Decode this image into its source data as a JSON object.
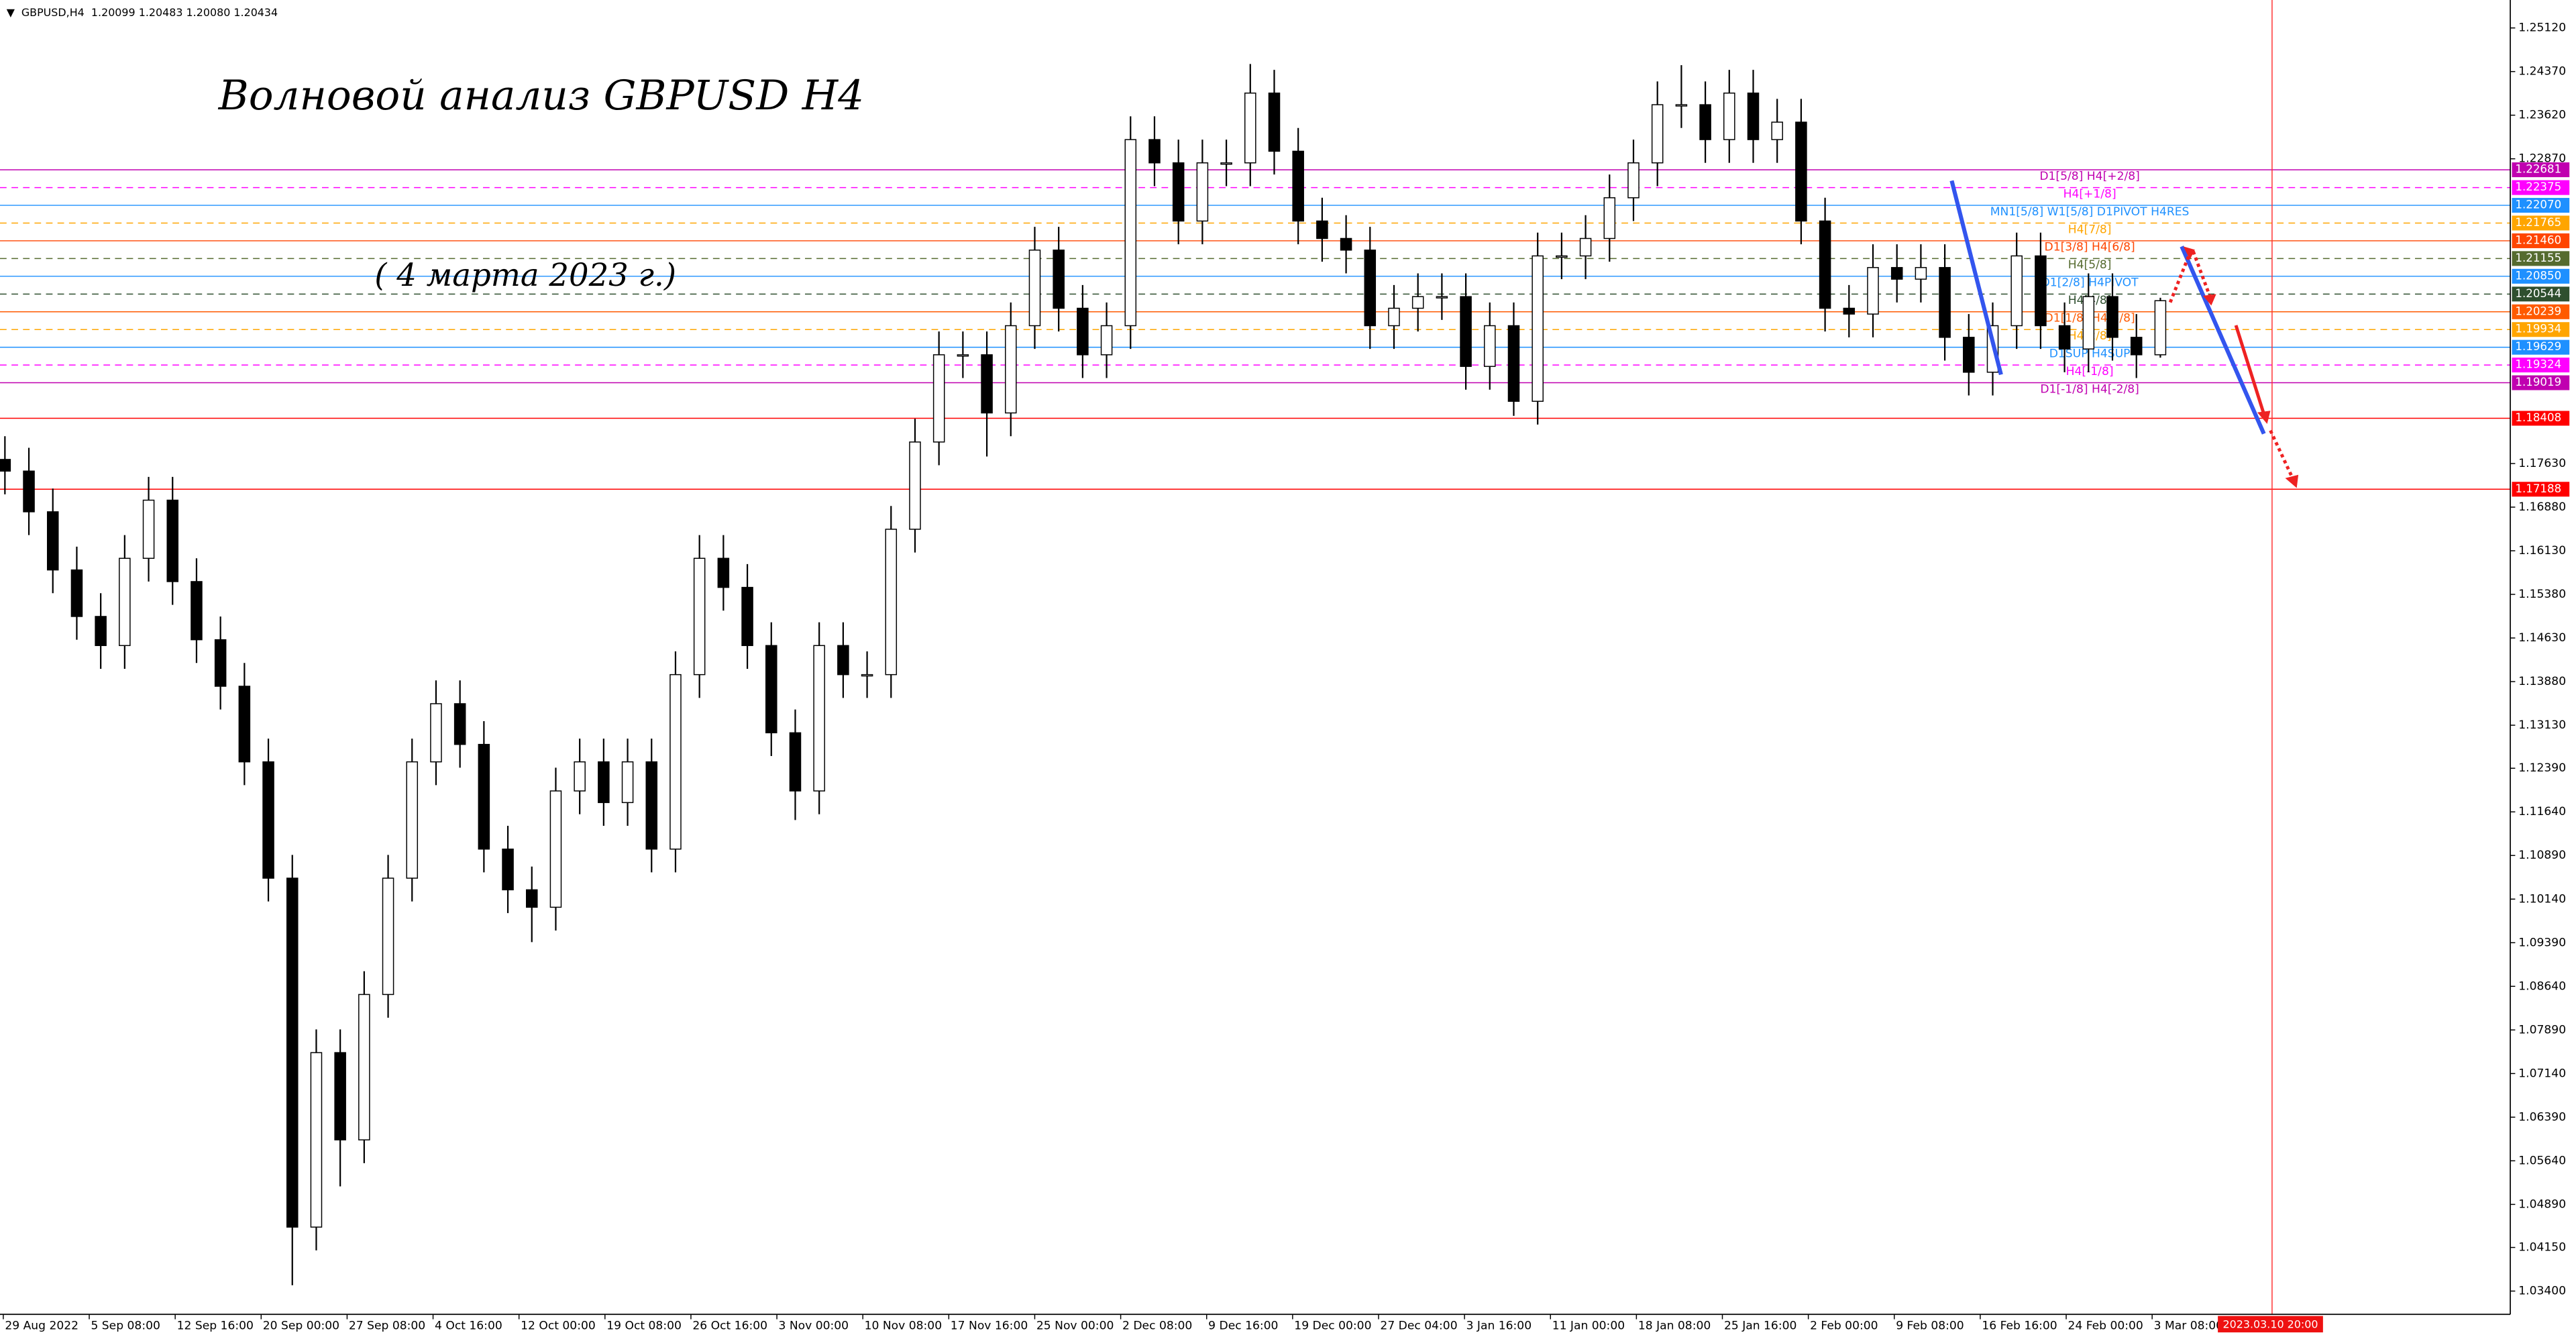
{
  "chart_data": {
    "type": "candlestick",
    "title": "Волновой анализ GBPUSD H4",
    "subtitle": "( 4 марта 2023 г.)",
    "info": "GBPUSD,H4  1.20099 1.20483 1.20080 1.20434",
    "cursor_label": "2023.03.10 20:00",
    "ylim": [
      1.03,
      1.256
    ],
    "yticks": [
      {
        "value": 1.2512,
        "label": "1.25120"
      },
      {
        "value": 1.2437,
        "label": "1.24370"
      },
      {
        "value": 1.2362,
        "label": "1.23620"
      },
      {
        "value": 1.2287,
        "label": "1.22870"
      },
      {
        "value": 1.1763,
        "label": "1.17630"
      },
      {
        "value": 1.1688,
        "label": "1.16880"
      },
      {
        "value": 1.1613,
        "label": "1.16130"
      },
      {
        "value": 1.1538,
        "label": "1.15380"
      },
      {
        "value": 1.1463,
        "label": "1.14630"
      },
      {
        "value": 1.1388,
        "label": "1.13880"
      },
      {
        "value": 1.1313,
        "label": "1.13130"
      },
      {
        "value": 1.1239,
        "label": "1.12390"
      },
      {
        "value": 1.1164,
        "label": "1.11640"
      },
      {
        "value": 1.1089,
        "label": "1.10890"
      },
      {
        "value": 1.1014,
        "label": "1.10140"
      },
      {
        "value": 1.0939,
        "label": "1.09390"
      },
      {
        "value": 1.0864,
        "label": "1.08640"
      },
      {
        "value": 1.0789,
        "label": "1.07890"
      },
      {
        "value": 1.0714,
        "label": "1.07140"
      },
      {
        "value": 1.0639,
        "label": "1.06390"
      },
      {
        "value": 1.0564,
        "label": "1.05640"
      },
      {
        "value": 1.0489,
        "label": "1.04890"
      },
      {
        "value": 1.0415,
        "label": "1.04150"
      },
      {
        "value": 1.034,
        "label": "1.03400"
      }
    ],
    "x_labels": [
      "29 Aug 2022",
      "5 Sep 08:00",
      "12 Sep 16:00",
      "20 Sep 00:00",
      "27 Sep 08:00",
      "4 Oct 16:00",
      "12 Oct 00:00",
      "19 Oct 08:00",
      "26 Oct 16:00",
      "3 Nov 00:00",
      "10 Nov 08:00",
      "17 Nov 16:00",
      "25 Nov 00:00",
      "2 Dec 08:00",
      "9 Dec 16:00",
      "19 Dec 00:00",
      "27 Dec 04:00",
      "3 Jan 16:00",
      "11 Jan 00:00",
      "18 Jan 08:00",
      "25 Jan 16:00",
      "2 Feb 00:00",
      "9 Feb 08:00",
      "16 Feb 16:00",
      "24 Feb 00:00",
      "3 Mar 08:00"
    ],
    "candles": {
      "open": [
        1.177,
        1.175,
        1.168,
        1.158,
        1.15,
        1.145,
        1.16,
        1.17,
        1.156,
        1.146,
        1.138,
        1.125,
        1.105,
        1.045,
        1.075,
        1.06,
        1.085,
        1.105,
        1.125,
        1.135,
        1.128,
        1.11,
        1.103,
        1.1,
        1.12,
        1.125,
        1.118,
        1.125,
        1.11,
        1.14,
        1.16,
        1.155,
        1.145,
        1.13,
        1.12,
        1.145,
        1.14,
        1.14,
        1.165,
        1.18,
        1.195,
        1.195,
        1.185,
        1.2,
        1.213,
        1.203,
        1.195,
        1.2,
        1.232,
        1.228,
        1.218,
        1.228,
        1.228,
        1.24,
        1.23,
        1.218,
        1.215,
        1.213,
        1.2,
        1.203,
        1.205,
        1.205,
        1.193,
        1.2,
        1.187,
        1.212,
        1.212,
        1.215,
        1.222,
        1.228,
        1.238,
        1.238,
        1.232,
        1.24,
        1.232,
        1.235,
        1.218,
        1.203,
        1.202,
        1.21,
        1.208,
        1.21,
        1.198,
        1.192,
        1.2,
        1.212,
        1.2,
        1.196,
        1.205,
        1.198,
        1.195
      ],
      "high": [
        1.181,
        1.179,
        1.172,
        1.162,
        1.154,
        1.164,
        1.174,
        1.174,
        1.16,
        1.15,
        1.142,
        1.129,
        1.109,
        1.079,
        1.079,
        1.089,
        1.109,
        1.129,
        1.139,
        1.139,
        1.132,
        1.114,
        1.107,
        1.124,
        1.129,
        1.129,
        1.129,
        1.129,
        1.144,
        1.164,
        1.164,
        1.159,
        1.149,
        1.134,
        1.149,
        1.149,
        1.144,
        1.169,
        1.184,
        1.199,
        1.199,
        1.199,
        1.204,
        1.217,
        1.217,
        1.207,
        1.204,
        1.236,
        1.236,
        1.232,
        1.232,
        1.232,
        1.245,
        1.244,
        1.234,
        1.222,
        1.219,
        1.217,
        1.207,
        1.209,
        1.209,
        1.209,
        1.204,
        1.204,
        1.216,
        1.216,
        1.219,
        1.226,
        1.232,
        1.242,
        1.2448,
        1.242,
        1.244,
        1.244,
        1.239,
        1.239,
        1.222,
        1.207,
        1.214,
        1.214,
        1.214,
        1.214,
        1.202,
        1.204,
        1.216,
        1.216,
        1.204,
        1.209,
        1.209,
        1.202,
        1.2048
      ],
      "low": [
        1.171,
        1.164,
        1.154,
        1.146,
        1.141,
        1.141,
        1.156,
        1.152,
        1.142,
        1.134,
        1.121,
        1.101,
        1.035,
        1.041,
        1.052,
        1.056,
        1.081,
        1.101,
        1.121,
        1.124,
        1.106,
        1.099,
        1.094,
        1.096,
        1.116,
        1.114,
        1.114,
        1.106,
        1.106,
        1.136,
        1.151,
        1.141,
        1.126,
        1.115,
        1.116,
        1.136,
        1.136,
        1.136,
        1.161,
        1.176,
        1.191,
        1.1775,
        1.181,
        1.196,
        1.199,
        1.191,
        1.191,
        1.196,
        1.224,
        1.214,
        1.214,
        1.224,
        1.224,
        1.226,
        1.214,
        1.211,
        1.209,
        1.196,
        1.196,
        1.199,
        1.201,
        1.189,
        1.189,
        1.1845,
        1.183,
        1.208,
        1.208,
        1.211,
        1.218,
        1.224,
        1.234,
        1.228,
        1.228,
        1.228,
        1.228,
        1.214,
        1.199,
        1.198,
        1.198,
        1.204,
        1.204,
        1.194,
        1.188,
        1.188,
        1.196,
        1.196,
        1.192,
        1.192,
        1.194,
        1.191,
        1.1945
      ],
      "close": [
        1.175,
        1.168,
        1.158,
        1.15,
        1.145,
        1.16,
        1.17,
        1.156,
        1.146,
        1.138,
        1.125,
        1.105,
        1.045,
        1.075,
        1.06,
        1.085,
        1.105,
        1.125,
        1.135,
        1.128,
        1.11,
        1.103,
        1.1,
        1.12,
        1.125,
        1.118,
        1.125,
        1.11,
        1.14,
        1.16,
        1.155,
        1.145,
        1.13,
        1.12,
        1.145,
        1.14,
        1.14,
        1.165,
        1.18,
        1.195,
        1.195,
        1.185,
        1.2,
        1.213,
        1.203,
        1.195,
        1.2,
        1.232,
        1.228,
        1.218,
        1.228,
        1.228,
        1.24,
        1.23,
        1.218,
        1.215,
        1.213,
        1.2,
        1.203,
        1.205,
        1.205,
        1.193,
        1.2,
        1.187,
        1.212,
        1.212,
        1.215,
        1.222,
        1.228,
        1.238,
        1.238,
        1.232,
        1.24,
        1.232,
        1.235,
        1.218,
        1.203,
        1.202,
        1.21,
        1.208,
        1.21,
        1.198,
        1.192,
        1.2,
        1.212,
        1.2,
        1.196,
        1.205,
        1.198,
        1.195,
        1.2043
      ]
    },
    "levels": [
      {
        "value": 1.22681,
        "value_label": "1.22681",
        "label": "D1[5/8] H4[+2/8]",
        "color": "#c000b0",
        "dashed": false
      },
      {
        "value": 1.22375,
        "value_label": "1.22375",
        "label": "H4[+1/8]",
        "color": "#ff00ff",
        "dashed": true
      },
      {
        "value": 1.2207,
        "value_label": "1.22070",
        "label": "MN1[5/8] W1[5/8] D1PIVOT H4RES",
        "color": "#1e90ff",
        "dashed": false
      },
      {
        "value": 1.21765,
        "value_label": "1.21765",
        "label": "H4[7/8]",
        "color": "#ffa500",
        "dashed": true
      },
      {
        "value": 1.2146,
        "value_label": "1.21460",
        "label": "D1[3/8] H4[6/8]",
        "color": "#ff4500",
        "dashed": false
      },
      {
        "value": 1.21155,
        "value_label": "1.21155",
        "label": "H4[5/8]",
        "color": "#556b2f",
        "dashed": true
      },
      {
        "value": 1.2085,
        "value_label": "1.20850",
        "label": "D1[2/8] H4PIVOT",
        "color": "#1e90ff",
        "dashed": false
      },
      {
        "value": 1.20544,
        "value_label": "1.20544",
        "label": "H4[4/8]",
        "color": "#2f4f2f",
        "dashed": true
      },
      {
        "value": 1.20239,
        "value_label": "1.20239",
        "label": "D1[1/8] H4[3/8]",
        "color": "#ff5a00",
        "dashed": false
      },
      {
        "value": 1.19934,
        "value_label": "1.19934",
        "label": "H4[2/8]",
        "color": "#ffa500",
        "dashed": true
      },
      {
        "value": 1.19629,
        "value_label": "1.19629",
        "label": "D1SUP H4SUP",
        "color": "#1e90ff",
        "dashed": false
      },
      {
        "value": 1.19324,
        "value_label": "1.19324",
        "label": "H4[-1/8]",
        "color": "#ff00ff",
        "dashed": true
      },
      {
        "value": 1.19019,
        "value_label": "1.19019",
        "label": "D1[-1/8] H4[-2/8]",
        "color": "#c000b0",
        "dashed": false
      },
      {
        "value": 1.18408,
        "value_label": "1.18408",
        "color": "#ff0000",
        "dashed": false
      },
      {
        "value": 1.17188,
        "value_label": "1.17188",
        "color": "#ff0000",
        "dashed": false
      }
    ],
    "grid": false
  }
}
